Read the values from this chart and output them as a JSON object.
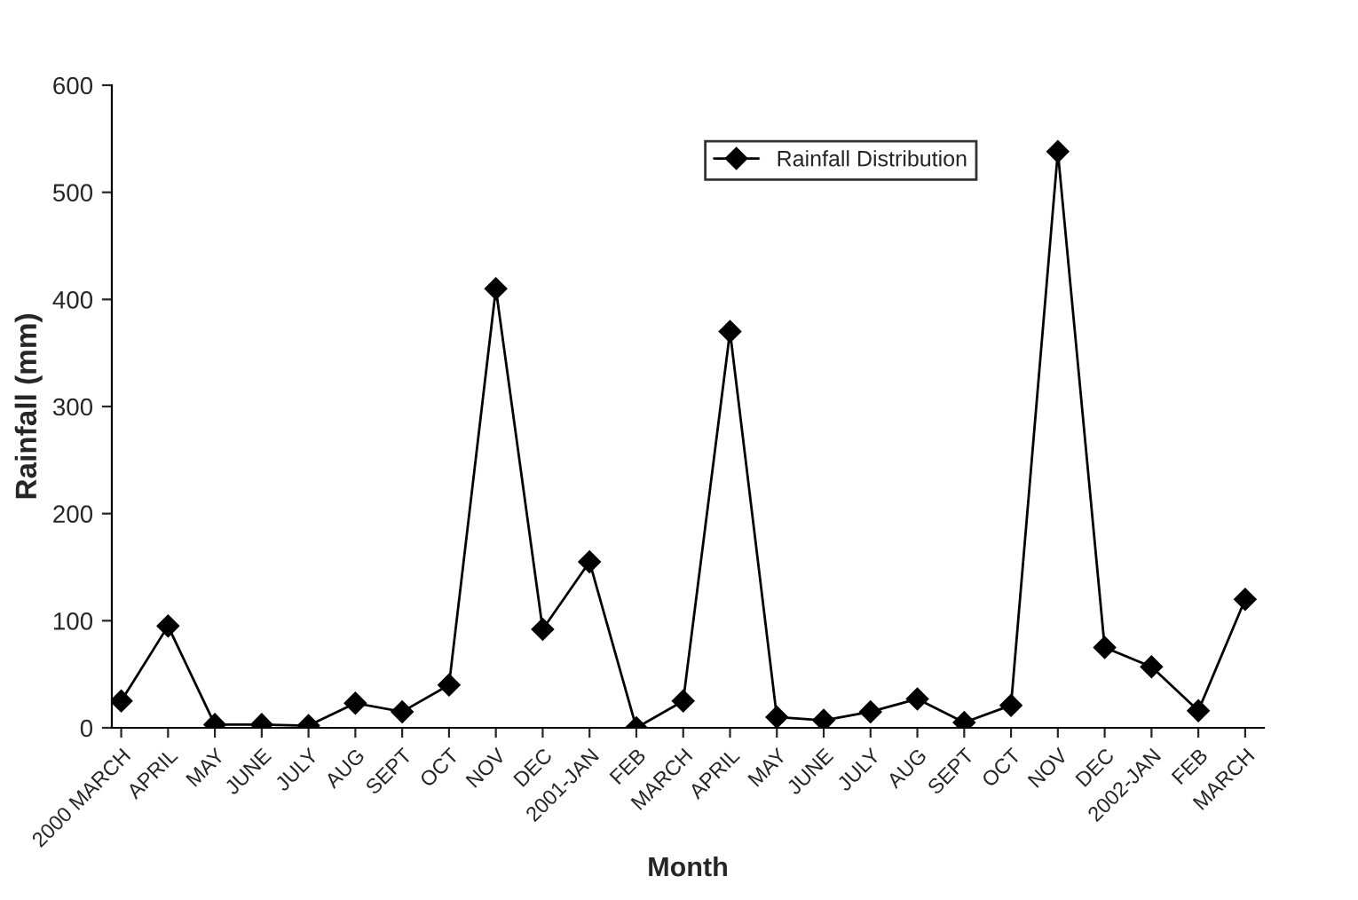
{
  "chart_data": {
    "type": "line",
    "xlabel": "Month",
    "ylabel": "Rainfall (mm)",
    "categories": [
      "2000 MARCH",
      "APRIL",
      "MAY",
      "JUNE",
      "JULY",
      "AUG",
      "SEPT",
      "OCT",
      "NOV",
      "DEC",
      "2001-JAN",
      "FEB",
      "MARCH",
      "APRIL",
      "MAY",
      "JUNE",
      "JULY",
      "AUG",
      "SEPT",
      "OCT",
      "NOV",
      "DEC",
      "2002-JAN",
      "FEB",
      "MARCH"
    ],
    "series": [
      {
        "name": "Rainfall Distribution",
        "color": "#000000",
        "values": [
          25,
          95,
          3,
          3,
          2,
          23,
          15,
          40,
          410,
          92,
          155,
          0,
          25,
          370,
          10,
          7,
          15,
          27,
          5,
          21,
          538,
          75,
          57,
          16,
          120
        ]
      }
    ],
    "ylim": [
      0,
      600
    ],
    "yticks": [
      0,
      100,
      200,
      300,
      400,
      500,
      600
    ],
    "grid": false,
    "legend": "top right",
    "marker": "diamond",
    "line_style": "solid"
  }
}
